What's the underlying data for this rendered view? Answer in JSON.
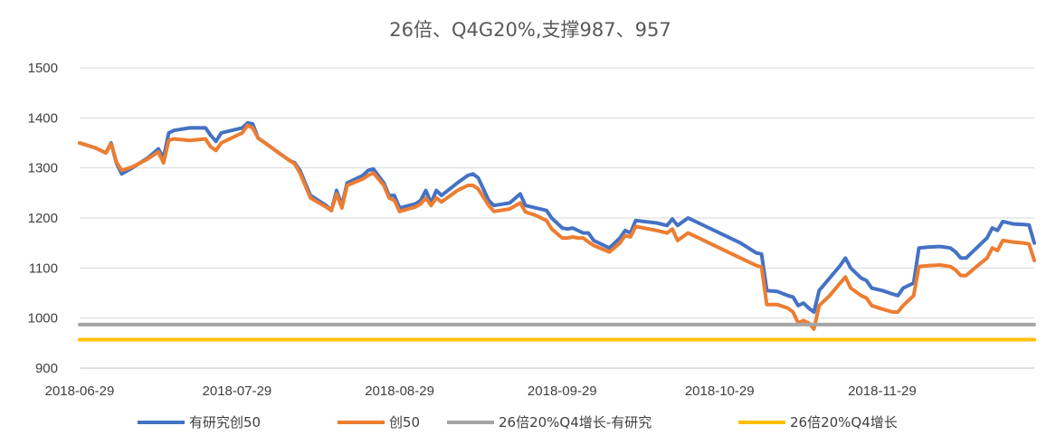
{
  "chart_data": {
    "type": "line",
    "title": "26倍、Q4G20%,支撑987、957",
    "xlabel": "",
    "ylabel": "",
    "ylim": [
      900,
      1500
    ],
    "yticks": [
      900,
      1000,
      1100,
      1200,
      1300,
      1400,
      1500
    ],
    "x_tick_labels": [
      "2018-06-29",
      "2018-07-29",
      "2018-08-29",
      "2018-09-29",
      "2018-10-29",
      "2018-11-29"
    ],
    "x_range": [
      "2018-06-29",
      "2018-12-28"
    ],
    "grid": "horizontal",
    "legend_position": "bottom",
    "series": [
      {
        "name": "有研究创50",
        "color": "#4472C4",
        "points": [
          [
            "2018-06-29",
            1350
          ],
          [
            "2018-07-02",
            1340
          ],
          [
            "2018-07-04",
            1330
          ],
          [
            "2018-07-05",
            1350
          ],
          [
            "2018-07-06",
            1310
          ],
          [
            "2018-07-07",
            1288
          ],
          [
            "2018-07-09",
            1300
          ],
          [
            "2018-07-12",
            1320
          ],
          [
            "2018-07-14",
            1338
          ],
          [
            "2018-07-15",
            1320
          ],
          [
            "2018-07-16",
            1370
          ],
          [
            "2018-07-17",
            1375
          ],
          [
            "2018-07-20",
            1380
          ],
          [
            "2018-07-23",
            1380
          ],
          [
            "2018-07-24",
            1365
          ],
          [
            "2018-07-25",
            1353
          ],
          [
            "2018-07-26",
            1370
          ],
          [
            "2018-07-28",
            1375
          ],
          [
            "2018-07-30",
            1380
          ],
          [
            "2018-07-31",
            1390
          ],
          [
            "2018-08-01",
            1388
          ],
          [
            "2018-08-02",
            1360
          ],
          [
            "2018-08-04",
            1345
          ],
          [
            "2018-08-06",
            1330
          ],
          [
            "2018-08-08",
            1315
          ],
          [
            "2018-08-09",
            1310
          ],
          [
            "2018-08-10",
            1295
          ],
          [
            "2018-08-11",
            1270
          ],
          [
            "2018-08-12",
            1245
          ],
          [
            "2018-08-15",
            1225
          ],
          [
            "2018-08-16",
            1215
          ],
          [
            "2018-08-17",
            1255
          ],
          [
            "2018-08-18",
            1225
          ],
          [
            "2018-08-19",
            1270
          ],
          [
            "2018-08-22",
            1285
          ],
          [
            "2018-08-23",
            1295
          ],
          [
            "2018-08-24",
            1298
          ],
          [
            "2018-08-26",
            1270
          ],
          [
            "2018-08-27",
            1245
          ],
          [
            "2018-08-28",
            1245
          ],
          [
            "2018-08-29",
            1220
          ],
          [
            "2018-09-01",
            1228
          ],
          [
            "2018-09-02",
            1235
          ],
          [
            "2018-09-03",
            1255
          ],
          [
            "2018-09-04",
            1230
          ],
          [
            "2018-09-05",
            1255
          ],
          [
            "2018-09-06",
            1245
          ],
          [
            "2018-09-09",
            1270
          ],
          [
            "2018-09-11",
            1285
          ],
          [
            "2018-09-12",
            1288
          ],
          [
            "2018-09-13",
            1280
          ],
          [
            "2018-09-15",
            1235
          ],
          [
            "2018-09-16",
            1225
          ],
          [
            "2018-09-19",
            1230
          ],
          [
            "2018-09-21",
            1248
          ],
          [
            "2018-09-22",
            1225
          ],
          [
            "2018-09-24",
            1220
          ],
          [
            "2018-09-26",
            1215
          ],
          [
            "2018-09-27",
            1200
          ],
          [
            "2018-09-29",
            1180
          ],
          [
            "2018-09-30",
            1178
          ],
          [
            "2018-10-01",
            1180
          ],
          [
            "2018-10-02",
            1175
          ],
          [
            "2018-10-03",
            1170
          ],
          [
            "2018-10-04",
            1170
          ],
          [
            "2018-10-05",
            1155
          ],
          [
            "2018-10-08",
            1140
          ],
          [
            "2018-10-10",
            1160
          ],
          [
            "2018-10-11",
            1175
          ],
          [
            "2018-10-12",
            1170
          ],
          [
            "2018-10-13",
            1195
          ],
          [
            "2018-10-17",
            1190
          ],
          [
            "2018-10-19",
            1185
          ],
          [
            "2018-10-20",
            1198
          ],
          [
            "2018-10-21",
            1185
          ],
          [
            "2018-10-23",
            1200
          ],
          [
            "2018-10-25",
            1190
          ],
          [
            "2018-10-29",
            1170
          ],
          [
            "2018-11-02",
            1150
          ],
          [
            "2018-11-05",
            1130
          ],
          [
            "2018-11-06",
            1128
          ],
          [
            "2018-11-07",
            1055
          ],
          [
            "2018-11-09",
            1053
          ],
          [
            "2018-11-11",
            1045
          ],
          [
            "2018-11-12",
            1042
          ],
          [
            "2018-11-13",
            1025
          ],
          [
            "2018-11-14",
            1030
          ],
          [
            "2018-11-15",
            1020
          ],
          [
            "2018-11-16",
            1012
          ],
          [
            "2018-11-17",
            1055
          ],
          [
            "2018-11-19",
            1080
          ],
          [
            "2018-11-21",
            1105
          ],
          [
            "2018-11-22",
            1120
          ],
          [
            "2018-11-23",
            1100
          ],
          [
            "2018-11-25",
            1080
          ],
          [
            "2018-11-26",
            1075
          ],
          [
            "2018-11-27",
            1060
          ],
          [
            "2018-11-29",
            1055
          ],
          [
            "2018-12-01",
            1048
          ],
          [
            "2018-12-02",
            1045
          ],
          [
            "2018-12-03",
            1060
          ],
          [
            "2018-12-05",
            1070
          ],
          [
            "2018-12-06",
            1140
          ],
          [
            "2018-12-08",
            1142
          ],
          [
            "2018-12-10",
            1143
          ],
          [
            "2018-12-12",
            1140
          ],
          [
            "2018-12-13",
            1132
          ],
          [
            "2018-12-14",
            1120
          ],
          [
            "2018-12-15",
            1120
          ],
          [
            "2018-12-17",
            1140
          ],
          [
            "2018-12-19",
            1160
          ],
          [
            "2018-12-20",
            1180
          ],
          [
            "2018-12-21",
            1175
          ],
          [
            "2018-12-22",
            1193
          ],
          [
            "2018-12-24",
            1188
          ],
          [
            "2018-12-26",
            1187
          ],
          [
            "2018-12-27",
            1186
          ],
          [
            "2018-12-28",
            1150
          ]
        ]
      },
      {
        "name": "创50",
        "color": "#ED7D31",
        "points": [
          [
            "2018-06-29",
            1350
          ],
          [
            "2018-07-02",
            1340
          ],
          [
            "2018-07-04",
            1330
          ],
          [
            "2018-07-05",
            1348
          ],
          [
            "2018-07-06",
            1312
          ],
          [
            "2018-07-07",
            1295
          ],
          [
            "2018-07-09",
            1302
          ],
          [
            "2018-07-12",
            1318
          ],
          [
            "2018-07-14",
            1332
          ],
          [
            "2018-07-15",
            1310
          ],
          [
            "2018-07-16",
            1355
          ],
          [
            "2018-07-17",
            1358
          ],
          [
            "2018-07-20",
            1355
          ],
          [
            "2018-07-23",
            1358
          ],
          [
            "2018-07-24",
            1342
          ],
          [
            "2018-07-25",
            1335
          ],
          [
            "2018-07-26",
            1350
          ],
          [
            "2018-07-28",
            1360
          ],
          [
            "2018-07-30",
            1370
          ],
          [
            "2018-07-31",
            1385
          ],
          [
            "2018-08-01",
            1380
          ],
          [
            "2018-08-02",
            1360
          ],
          [
            "2018-08-04",
            1345
          ],
          [
            "2018-08-06",
            1330
          ],
          [
            "2018-08-08",
            1315
          ],
          [
            "2018-08-09",
            1308
          ],
          [
            "2018-08-10",
            1290
          ],
          [
            "2018-08-11",
            1265
          ],
          [
            "2018-08-12",
            1240
          ],
          [
            "2018-08-15",
            1222
          ],
          [
            "2018-08-16",
            1215
          ],
          [
            "2018-08-17",
            1248
          ],
          [
            "2018-08-18",
            1220
          ],
          [
            "2018-08-19",
            1265
          ],
          [
            "2018-08-22",
            1278
          ],
          [
            "2018-08-23",
            1285
          ],
          [
            "2018-08-24",
            1290
          ],
          [
            "2018-08-26",
            1265
          ],
          [
            "2018-08-27",
            1240
          ],
          [
            "2018-08-28",
            1235
          ],
          [
            "2018-08-29",
            1213
          ],
          [
            "2018-09-01",
            1222
          ],
          [
            "2018-09-02",
            1228
          ],
          [
            "2018-09-03",
            1240
          ],
          [
            "2018-09-04",
            1225
          ],
          [
            "2018-09-05",
            1240
          ],
          [
            "2018-09-06",
            1232
          ],
          [
            "2018-09-09",
            1255
          ],
          [
            "2018-09-11",
            1265
          ],
          [
            "2018-09-12",
            1265
          ],
          [
            "2018-09-13",
            1258
          ],
          [
            "2018-09-15",
            1225
          ],
          [
            "2018-09-16",
            1213
          ],
          [
            "2018-09-19",
            1218
          ],
          [
            "2018-09-21",
            1230
          ],
          [
            "2018-09-22",
            1212
          ],
          [
            "2018-09-24",
            1205
          ],
          [
            "2018-09-26",
            1195
          ],
          [
            "2018-09-27",
            1178
          ],
          [
            "2018-09-29",
            1160
          ],
          [
            "2018-09-30",
            1160
          ],
          [
            "2018-10-01",
            1162
          ],
          [
            "2018-10-02",
            1160
          ],
          [
            "2018-10-03",
            1160
          ],
          [
            "2018-10-04",
            1152
          ],
          [
            "2018-10-05",
            1145
          ],
          [
            "2018-10-08",
            1132
          ],
          [
            "2018-10-10",
            1150
          ],
          [
            "2018-10-11",
            1165
          ],
          [
            "2018-10-12",
            1162
          ],
          [
            "2018-10-13",
            1183
          ],
          [
            "2018-10-17",
            1175
          ],
          [
            "2018-10-19",
            1170
          ],
          [
            "2018-10-20",
            1178
          ],
          [
            "2018-10-21",
            1155
          ],
          [
            "2018-10-23",
            1170
          ],
          [
            "2018-10-25",
            1160
          ],
          [
            "2018-10-29",
            1140
          ],
          [
            "2018-11-02",
            1120
          ],
          [
            "2018-11-05",
            1105
          ],
          [
            "2018-11-06",
            1102
          ],
          [
            "2018-11-07",
            1027
          ],
          [
            "2018-11-09",
            1027
          ],
          [
            "2018-11-11",
            1020
          ],
          [
            "2018-11-12",
            1012
          ],
          [
            "2018-11-13",
            990
          ],
          [
            "2018-11-14",
            995
          ],
          [
            "2018-11-15",
            990
          ],
          [
            "2018-11-16",
            978
          ],
          [
            "2018-11-17",
            1025
          ],
          [
            "2018-11-19",
            1045
          ],
          [
            "2018-11-21",
            1070
          ],
          [
            "2018-11-22",
            1082
          ],
          [
            "2018-11-23",
            1060
          ],
          [
            "2018-11-25",
            1045
          ],
          [
            "2018-11-26",
            1040
          ],
          [
            "2018-11-27",
            1025
          ],
          [
            "2018-11-29",
            1018
          ],
          [
            "2018-12-01",
            1012
          ],
          [
            "2018-12-02",
            1012
          ],
          [
            "2018-12-03",
            1025
          ],
          [
            "2018-12-05",
            1045
          ],
          [
            "2018-12-06",
            1103
          ],
          [
            "2018-12-08",
            1105
          ],
          [
            "2018-12-10",
            1106
          ],
          [
            "2018-12-12",
            1103
          ],
          [
            "2018-12-13",
            1096
          ],
          [
            "2018-12-14",
            1085
          ],
          [
            "2018-12-15",
            1085
          ],
          [
            "2018-12-17",
            1103
          ],
          [
            "2018-12-19",
            1120
          ],
          [
            "2018-12-20",
            1140
          ],
          [
            "2018-12-21",
            1135
          ],
          [
            "2018-12-22",
            1155
          ],
          [
            "2018-12-24",
            1152
          ],
          [
            "2018-12-26",
            1150
          ],
          [
            "2018-12-27",
            1148
          ],
          [
            "2018-12-28",
            1115
          ]
        ]
      },
      {
        "name": "26倍20%Q4增长-有研究",
        "color": "#A5A5A5",
        "points": [
          [
            "2018-06-29",
            987
          ],
          [
            "2018-12-28",
            987
          ]
        ]
      },
      {
        "name": "26倍20%Q4增长",
        "color": "#FFC000",
        "points": [
          [
            "2018-06-29",
            957
          ],
          [
            "2018-12-28",
            957
          ]
        ]
      }
    ]
  }
}
